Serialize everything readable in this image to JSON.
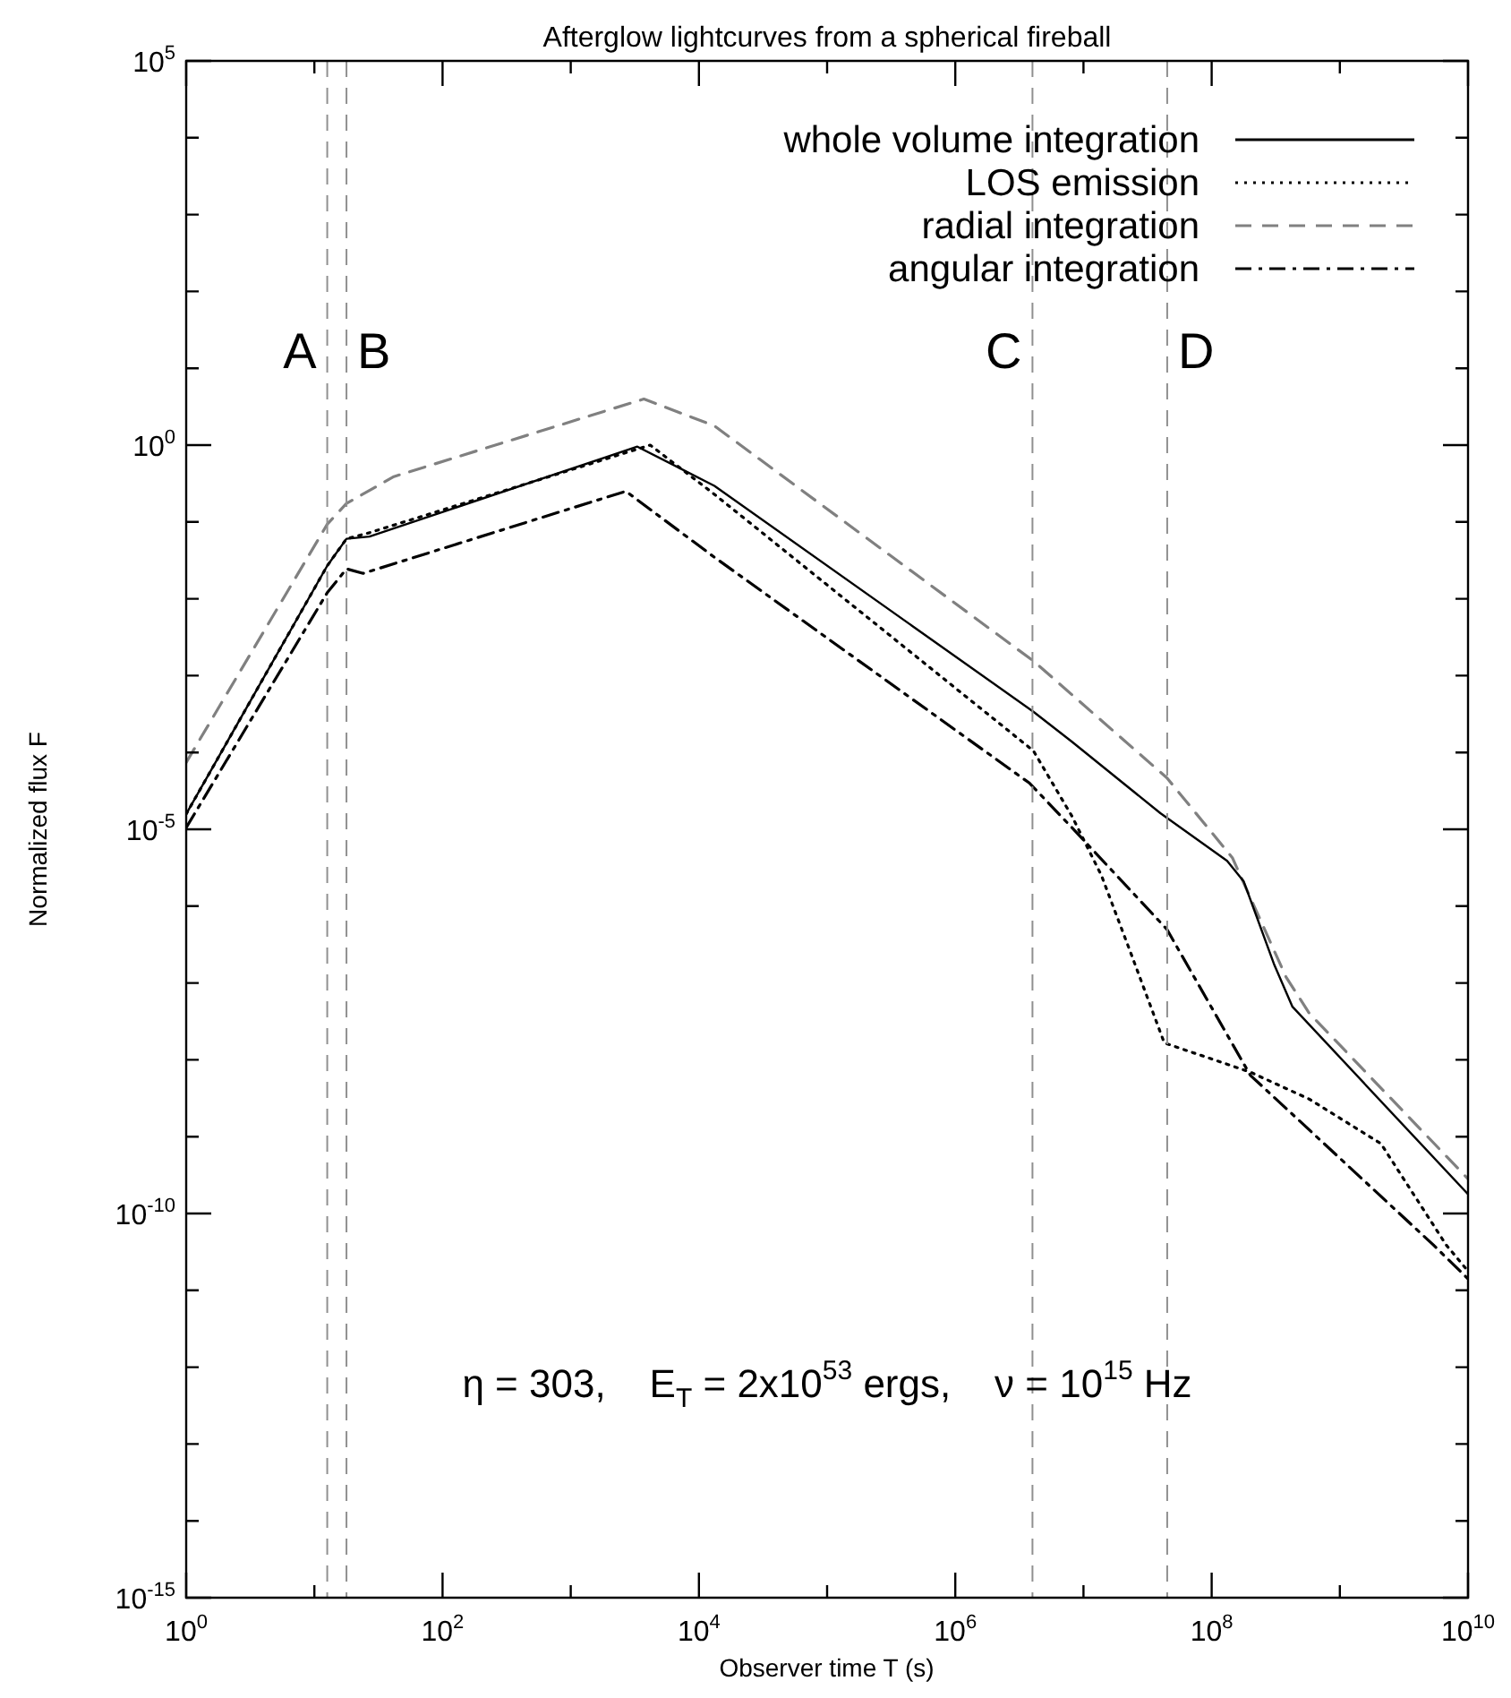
{
  "chart_data": {
    "type": "line",
    "title": "Afterglow lightcurves from a spherical fireball",
    "xlabel": "Observer time T (s)",
    "ylabel": "Normalized flux F",
    "log": "xy",
    "grid": false,
    "legend": "top right",
    "marker": "none",
    "xlim": [
      1,
      10000000000.0
    ],
    "ylim": [
      1e-15,
      100000.0
    ],
    "xticks": [
      {
        "value": 1,
        "label": "10$^{0}$"
      },
      {
        "value": 10,
        "label": null
      },
      {
        "value": 100,
        "label": "10$^{2}$"
      },
      {
        "value": 1000,
        "label": null
      },
      {
        "value": 10000,
        "label": "10$^{4}$"
      },
      {
        "value": 100000,
        "label": null
      },
      {
        "value": 1000000,
        "label": "10$^{6}$"
      },
      {
        "value": 10000000,
        "label": null
      },
      {
        "value": 100000000,
        "label": "10$^{8}$"
      },
      {
        "value": 1000000000,
        "label": null
      },
      {
        "value": 10000000000,
        "label": "10$^{10}$"
      }
    ],
    "yticks": [
      {
        "value": 1e-15,
        "label": "10$^{-15}$"
      },
      {
        "value": 1e-14,
        "label": null
      },
      {
        "value": 1e-13,
        "label": null
      },
      {
        "value": 1e-12,
        "label": null
      },
      {
        "value": 1e-11,
        "label": null
      },
      {
        "value": 1e-10,
        "label": "10$^{-10}$"
      },
      {
        "value": 1e-09,
        "label": null
      },
      {
        "value": 1e-08,
        "label": null
      },
      {
        "value": 1e-07,
        "label": null
      },
      {
        "value": 1e-06,
        "label": null
      },
      {
        "value": 1e-05,
        "label": "10$^{-5}$"
      },
      {
        "value": 0.0001,
        "label": null
      },
      {
        "value": 0.001,
        "label": null
      },
      {
        "value": 0.01,
        "label": null
      },
      {
        "value": 0.1,
        "label": null
      },
      {
        "value": 1,
        "label": "10$^{0}$"
      },
      {
        "value": 10,
        "label": null
      },
      {
        "value": 100,
        "label": null
      },
      {
        "value": 1000,
        "label": null
      },
      {
        "value": 10000,
        "label": null
      },
      {
        "value": 100000,
        "label": "10$^{5}$"
      }
    ],
    "series": [
      {
        "name": "whole volume integration",
        "color": "#000000",
        "line_style": "solid",
        "x": [
          1,
          12.6,
          17.8,
          26.9,
          3310,
          13200,
          4070000.0,
          8130000.0,
          39800000.0,
          132000000.0,
          178000000.0,
          309000000.0,
          427000000.0,
          10000000000.0
        ],
        "values": [
          1.58e-05,
          0.0269,
          0.0603,
          0.0646,
          0.955,
          0.295,
          0.000339,
          0.000138,
          1.62e-05,
          3.89e-06,
          2.09e-06,
          1.7e-07,
          4.9e-08,
          1.78e-10
        ]
      },
      {
        "name": "LOS emission",
        "color": "#000000",
        "line_style": "dotted",
        "x": [
          1,
          12.6,
          17.8,
          26.9,
          4170,
          13200,
          4070000.0,
          8130000.0,
          13800000.0,
          23400000.0,
          42700000.0,
          200000000.0,
          575000000.0,
          2090000000.0,
          6760000000.0,
          10000000000.0
        ],
        "values": [
          1.58e-05,
          0.0269,
          0.0603,
          0.0724,
          1.0,
          0.229,
          0.000105,
          1.48e-05,
          2.51e-06,
          2.45e-07,
          1.66e-08,
          6.92e-09,
          3.09e-09,
          8.13e-10,
          3.89e-11,
          1.78e-11
        ]
      },
      {
        "name": "radial integration",
        "color": "#808080",
        "line_style": "dashed",
        "x": [
          1,
          12.6,
          17.8,
          41.7,
          3720,
          13200,
          4070000.0,
          44700000.0,
          145000000.0,
          380000000.0,
          575000000.0,
          10000000000.0
        ],
        "values": [
          7.41e-05,
          0.0933,
          0.174,
          0.389,
          3.98,
          1.78,
          0.00155,
          4.68e-05,
          4.27e-06,
          1.2e-07,
          4.07e-08,
          2.82e-10
        ]
      },
      {
        "name": "angular integration",
        "color": "#000000",
        "line_style": "dashdot",
        "x": [
          1,
          12.6,
          17.8,
          24.0,
          2690,
          13200,
          3800000.0,
          8130000.0,
          44700000.0,
          200000000.0,
          5370000000.0,
          10000000000.0
        ],
        "values": [
          1.05e-05,
          0.012,
          0.0245,
          0.0214,
          0.251,
          0.0347,
          3.98e-05,
          1.05e-05,
          5.01e-07,
          6.31e-09,
          3.89e-11,
          1.41e-11
        ]
      }
    ],
    "ref_lines": [
      {
        "axis": "x",
        "value": 12.6,
        "label": "A",
        "color": "#909090",
        "line_style": "dashed"
      },
      {
        "axis": "x",
        "value": 17.8,
        "label": "B",
        "color": "#909090",
        "line_style": "dashed"
      },
      {
        "axis": "x",
        "value": 4000000.0,
        "label": "C",
        "color": "#909090",
        "line_style": "dashed"
      },
      {
        "axis": "x",
        "value": 45000000.0,
        "label": "D",
        "color": "#909090",
        "line_style": "dashed"
      }
    ],
    "annotations": [
      "η = 303,    E$_{T}$ = 2x10$^{53}$ ergs,    ν = 10$^{15}$ Hz"
    ]
  }
}
